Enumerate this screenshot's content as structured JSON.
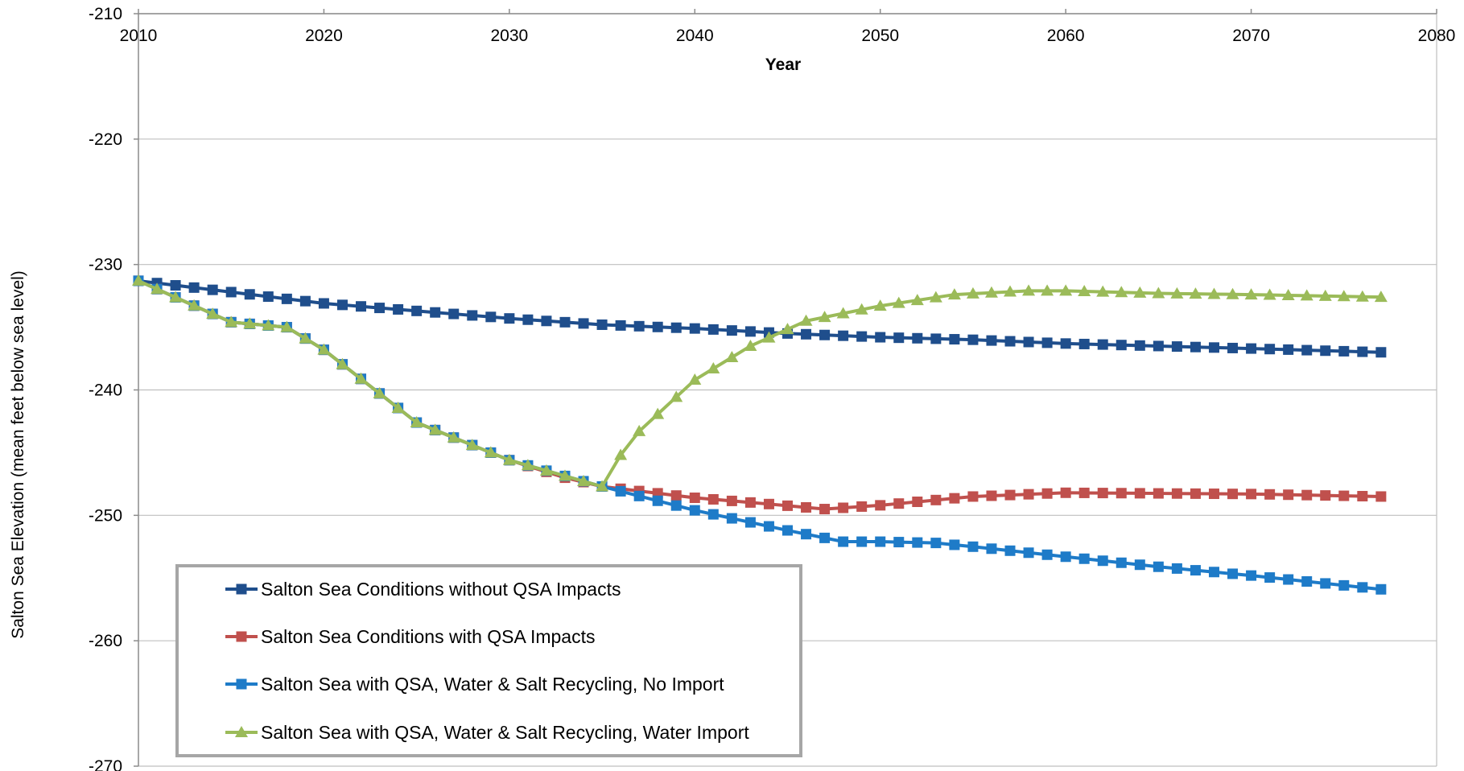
{
  "chart_data": {
    "type": "line",
    "title": "",
    "xlabel": "Year",
    "ylabel": "Salton Sea Elevation (mean feet below sea level)",
    "xlim": [
      2010,
      2080
    ],
    "ylim": [
      -270,
      -210
    ],
    "x_ticks": [
      "2010",
      "2020",
      "2030",
      "2040",
      "2050",
      "2060",
      "2070",
      "2080"
    ],
    "y_ticks": [
      "-210",
      "-220",
      "-230",
      "-240",
      "-250",
      "-260",
      "-270"
    ],
    "grid": "horizontal",
    "legend_position": "bottom-left",
    "series": [
      {
        "name": "Salton Sea Conditions without QSA Impacts",
        "color": "#1F4E8C",
        "marker": "square",
        "points": [
          [
            2010,
            -231.3
          ],
          [
            2020,
            -233.1
          ],
          [
            2025,
            -233.7
          ],
          [
            2030,
            -234.3
          ],
          [
            2035,
            -234.8
          ],
          [
            2040,
            -235.1
          ],
          [
            2045,
            -235.5
          ],
          [
            2050,
            -235.8
          ],
          [
            2055,
            -236.0
          ],
          [
            2060,
            -236.3
          ],
          [
            2065,
            -236.5
          ],
          [
            2070,
            -236.7
          ],
          [
            2077,
            -237.0
          ]
        ]
      },
      {
        "name": "Salton Sea Conditions with QSA Impacts",
        "color": "#C0504D",
        "marker": "square",
        "points": [
          [
            2010,
            -231.3
          ],
          [
            2015,
            -234.6
          ],
          [
            2018,
            -235.0
          ],
          [
            2020,
            -236.8
          ],
          [
            2025,
            -242.6
          ],
          [
            2030,
            -245.6
          ],
          [
            2033,
            -247.0
          ],
          [
            2035,
            -247.7
          ],
          [
            2040,
            -248.6
          ],
          [
            2044,
            -249.1
          ],
          [
            2047,
            -249.5
          ],
          [
            2050,
            -249.2
          ],
          [
            2055,
            -248.5
          ],
          [
            2060,
            -248.2
          ],
          [
            2070,
            -248.3
          ],
          [
            2077,
            -248.5
          ]
        ]
      },
      {
        "name": "Salton Sea with QSA, Water & Salt Recycling, No Import",
        "color": "#1E7BC8",
        "marker": "square",
        "points": [
          [
            2010,
            -231.3
          ],
          [
            2015,
            -234.6
          ],
          [
            2018,
            -235.0
          ],
          [
            2020,
            -236.8
          ],
          [
            2025,
            -242.6
          ],
          [
            2030,
            -245.6
          ],
          [
            2035,
            -247.7
          ],
          [
            2040,
            -249.6
          ],
          [
            2045,
            -251.2
          ],
          [
            2048,
            -252.1
          ],
          [
            2050,
            -252.1
          ],
          [
            2053,
            -252.2
          ],
          [
            2055,
            -252.5
          ],
          [
            2060,
            -253.3
          ],
          [
            2065,
            -254.1
          ],
          [
            2070,
            -254.8
          ],
          [
            2077,
            -255.9
          ]
        ]
      },
      {
        "name": "Salton Sea with QSA, Water & Salt Recycling, Water Import",
        "color": "#9BBB59",
        "marker": "triangle",
        "points": [
          [
            2010,
            -231.3
          ],
          [
            2015,
            -234.6
          ],
          [
            2018,
            -235.0
          ],
          [
            2020,
            -236.8
          ],
          [
            2025,
            -242.6
          ],
          [
            2030,
            -245.6
          ],
          [
            2035,
            -247.7
          ],
          [
            2036,
            -245.2
          ],
          [
            2037,
            -243.3
          ],
          [
            2040,
            -239.2
          ],
          [
            2043,
            -236.5
          ],
          [
            2046,
            -234.5
          ],
          [
            2050,
            -233.3
          ],
          [
            2054,
            -232.4
          ],
          [
            2058,
            -232.1
          ],
          [
            2060,
            -232.1
          ],
          [
            2065,
            -232.3
          ],
          [
            2070,
            -232.4
          ],
          [
            2077,
            -232.6
          ]
        ]
      }
    ]
  }
}
